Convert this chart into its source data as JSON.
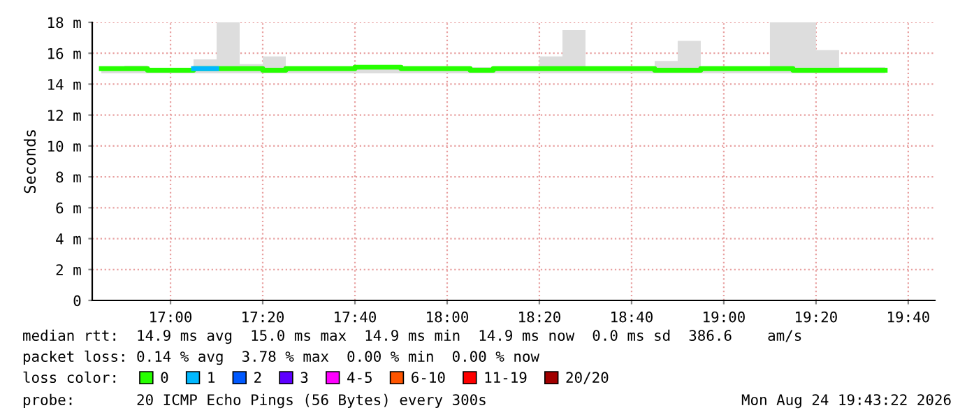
{
  "chart_data": {
    "type": "step",
    "ylabel": "Seconds",
    "x": [
      16.75,
      16.8333,
      16.9167,
      17.0,
      17.0833,
      17.1667,
      17.25,
      17.3333,
      17.4167,
      17.5,
      17.5833,
      17.6667,
      17.75,
      17.8333,
      17.9167,
      18.0,
      18.0833,
      18.1667,
      18.25,
      18.3333,
      18.4167,
      18.5,
      18.5833,
      18.6667,
      18.75,
      18.8333,
      18.9167,
      19.0,
      19.0833,
      19.1667,
      19.25,
      19.3333,
      19.4167,
      19.5,
      19.5833
    ],
    "series": [
      {
        "name": "0",
        "color": "#26ff00",
        "values": [
          15.0,
          15.0,
          14.9,
          14.9,
          15.0,
          15.0,
          15.0,
          14.9,
          15.0,
          15.0,
          15.0,
          15.1,
          15.1,
          15.0,
          15.0,
          15.0,
          14.9,
          15.0,
          15.0,
          15.0,
          15.0,
          15.0,
          15.0,
          15.0,
          14.9,
          14.9,
          15.0,
          15.0,
          15.0,
          15.0,
          14.9,
          14.9,
          14.9,
          14.9,
          14.9
        ],
        "lower": [
          14.7,
          14.7,
          14.7,
          14.7,
          14.7,
          14.7,
          14.7,
          14.7,
          14.7,
          14.7,
          14.7,
          14.7,
          14.7,
          14.7,
          14.7,
          14.7,
          14.7,
          14.7,
          14.7,
          14.7,
          14.7,
          14.7,
          14.7,
          14.7,
          14.7,
          14.7,
          14.7,
          14.7,
          14.7,
          14.7,
          14.7,
          14.7,
          14.7,
          14.7,
          14.7
        ],
        "upper": [
          15.1,
          15.2,
          15.0,
          15.0,
          15.6,
          18.0,
          15.3,
          15.8,
          15.0,
          15.0,
          15.1,
          15.0,
          15.1,
          15.1,
          15.1,
          15.1,
          15.1,
          15.0,
          15.1,
          15.8,
          17.5,
          15.1,
          15.1,
          15.1,
          15.5,
          16.8,
          15.1,
          15.1,
          15.1,
          18.0,
          18.0,
          16.2,
          15.1,
          15.1,
          15.1
        ]
      },
      {
        "name": "1",
        "color": "#00b8ff",
        "values": [
          null,
          null,
          null,
          null,
          15.0,
          15.0,
          null,
          null,
          null,
          null,
          null,
          null,
          null,
          null,
          null,
          null,
          null,
          null,
          null,
          null,
          null,
          null,
          null,
          null,
          null,
          null,
          null,
          null,
          null,
          null,
          null,
          null,
          null,
          null,
          null
        ]
      },
      {
        "name": "2",
        "color": "#0059ff",
        "values": [
          null,
          null,
          null,
          null,
          null,
          null,
          null,
          null,
          null,
          null,
          null,
          null,
          null,
          null,
          null,
          null,
          null,
          null,
          null,
          null,
          null,
          null,
          null,
          null,
          null,
          null,
          null,
          null,
          null,
          null,
          null,
          null,
          null,
          null,
          null
        ]
      },
      {
        "name": "3",
        "color": "#5e00ff",
        "values": [
          null,
          null,
          null,
          null,
          null,
          null,
          null,
          null,
          null,
          null,
          null,
          null,
          null,
          null,
          null,
          null,
          null,
          null,
          null,
          null,
          null,
          null,
          null,
          null,
          null,
          null,
          null,
          null,
          null,
          null,
          null,
          null,
          null,
          null,
          null
        ]
      },
      {
        "name": "4-5",
        "color": "#ff00ff",
        "values": [
          null,
          null,
          null,
          null,
          null,
          null,
          null,
          null,
          null,
          null,
          null,
          null,
          null,
          null,
          null,
          null,
          null,
          null,
          null,
          null,
          null,
          null,
          null,
          null,
          null,
          null,
          null,
          null,
          null,
          null,
          null,
          null,
          null,
          null,
          null
        ]
      },
      {
        "name": "6-10",
        "color": "#ff5500",
        "values": [
          null,
          null,
          null,
          null,
          null,
          null,
          null,
          null,
          null,
          null,
          null,
          null,
          null,
          null,
          null,
          null,
          null,
          null,
          null,
          null,
          null,
          null,
          null,
          null,
          null,
          null,
          null,
          null,
          null,
          null,
          null,
          null,
          null,
          null,
          null
        ]
      },
      {
        "name": "11-19",
        "color": "#ff0000",
        "values": [
          null,
          null,
          null,
          null,
          null,
          null,
          null,
          null,
          null,
          null,
          null,
          null,
          null,
          null,
          null,
          null,
          null,
          null,
          null,
          null,
          null,
          null,
          null,
          null,
          null,
          null,
          null,
          null,
          null,
          null,
          null,
          null,
          null,
          null,
          null
        ]
      },
      {
        "name": "20/20",
        "color": "#a10000",
        "values": [
          null,
          null,
          null,
          null,
          null,
          null,
          null,
          null,
          null,
          null,
          null,
          null,
          null,
          null,
          null,
          null,
          null,
          null,
          null,
          null,
          null,
          null,
          null,
          null,
          null,
          null,
          null,
          null,
          null,
          null,
          null,
          null,
          null,
          null,
          null
        ]
      }
    ],
    "xlim": [
      16.717,
      19.763
    ],
    "xticks": [
      {
        "value": 17.0,
        "label": "17:00"
      },
      {
        "value": 17.3333,
        "label": "17:20"
      },
      {
        "value": 17.6667,
        "label": "17:40"
      },
      {
        "value": 18.0,
        "label": "18:00"
      },
      {
        "value": 18.3333,
        "label": "18:20"
      },
      {
        "value": 18.6667,
        "label": "18:40"
      },
      {
        "value": 19.0,
        "label": "19:00"
      },
      {
        "value": 19.3333,
        "label": "19:20"
      },
      {
        "value": 19.6667,
        "label": "19:40"
      }
    ],
    "ylim": [
      0,
      18
    ],
    "yticks": [
      0,
      {
        "value": 2,
        "label": "2 m"
      },
      {
        "value": 4,
        "label": "4 m"
      },
      {
        "value": 6,
        "label": "6 m"
      },
      {
        "value": 8,
        "label": "8 m"
      },
      {
        "value": 10,
        "label": "10 m"
      },
      {
        "value": 12,
        "label": "12 m"
      },
      {
        "value": 14,
        "label": "14 m"
      },
      {
        "value": 16,
        "label": "16 m"
      },
      {
        "value": 18,
        "label": "18 m"
      }
    ],
    "grid": true,
    "legend": "bottom",
    "legend_title": "loss color:",
    "annotations": [
      "median rtt:  14.9 ms avg  15.0 ms max  14.9 ms min  14.9 ms now  0.0 ms sd  386.6    am/s",
      "packet loss: 0.14 % avg  3.78 % max  0.00 % min  0.00 % now",
      "probe:       20 ICMP Echo Pings (56 Bytes) every 300s",
      "Mon Aug 24 19:43:22 2026"
    ]
  }
}
